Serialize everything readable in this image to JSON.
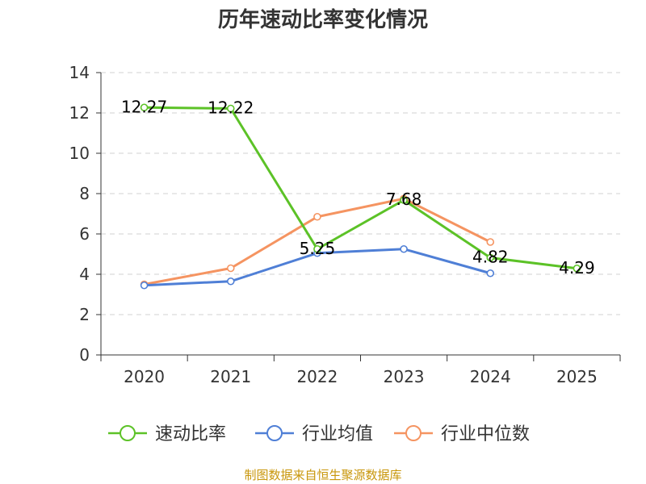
{
  "chart_data": {
    "type": "line",
    "title": "历年速动比率变化情况",
    "categories": [
      "2020",
      "2021",
      "2022",
      "2023",
      "2024",
      "2025"
    ],
    "ylim": [
      0,
      14
    ],
    "yticks": [
      0,
      2,
      4,
      6,
      8,
      10,
      12,
      14
    ],
    "grid": true,
    "legend_position": "bottom",
    "series": [
      {
        "name": "速动比率",
        "color": "#5cc227",
        "values": [
          12.27,
          12.22,
          5.25,
          7.68,
          4.82,
          4.29
        ],
        "labels": [
          "12.27",
          "12.22",
          "5.25",
          "7.68",
          "4.82",
          "4.29"
        ]
      },
      {
        "name": "行业均值",
        "color": "#4f7fd6",
        "values": [
          3.45,
          3.65,
          5.05,
          5.25,
          4.05,
          null
        ]
      },
      {
        "name": "行业中位数",
        "color": "#f59461",
        "values": [
          3.5,
          4.3,
          6.85,
          7.75,
          5.6,
          null
        ]
      }
    ],
    "source": "制图数据来自恒生聚源数据库"
  }
}
